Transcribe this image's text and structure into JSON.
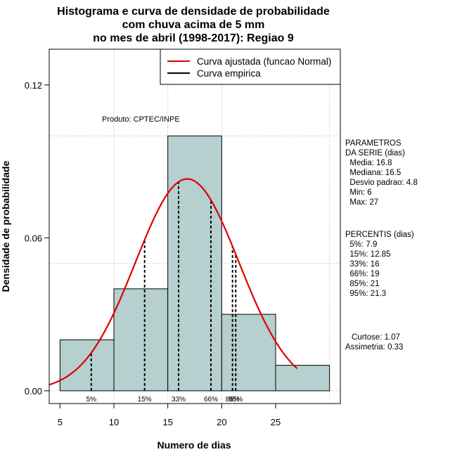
{
  "chart_data": {
    "type": "bar",
    "title_lines": [
      "Histograma e curva de densidade de probabilidade",
      "com chuva acima de 5 mm",
      "no mes de abril (1998-2017): Regiao 9"
    ],
    "xlabel": "Numero de dias",
    "ylabel": "Densidade de probabilidade",
    "xlim": [
      4,
      31
    ],
    "ylim": [
      -0.005,
      0.134
    ],
    "x_ticks": [
      5,
      10,
      15,
      20,
      25
    ],
    "y_ticks": [
      0.0,
      0.06,
      0.12
    ],
    "y_tick_labels": [
      "0.00",
      "0.06",
      "0.12"
    ],
    "grid_x": [
      10,
      15,
      20,
      30
    ],
    "grid_y": [
      0.0,
      0.05,
      0.1
    ],
    "bins": [
      {
        "from": 5,
        "to": 10,
        "density": 0.02
      },
      {
        "from": 10,
        "to": 15,
        "density": 0.04
      },
      {
        "from": 15,
        "to": 20,
        "density": 0.1
      },
      {
        "from": 20,
        "to": 25,
        "density": 0.03
      },
      {
        "from": 25,
        "to": 30,
        "density": 0.01
      }
    ],
    "normal_fit": {
      "mean": 16.8,
      "sd": 4.8,
      "x_from": 4,
      "x_to": 27,
      "color": "#dd0000"
    },
    "bar_color": "#b6cfcf",
    "percentiles": [
      {
        "label": "5%",
        "x": 7.9
      },
      {
        "label": "15%",
        "x": 12.85
      },
      {
        "label": "33%",
        "x": 16
      },
      {
        "label": "66%",
        "x": 19
      },
      {
        "label": "85%",
        "x": 21
      },
      {
        "label": "95%",
        "x": 21.3
      }
    ],
    "product_label": "Produto: CPTEC/INPE",
    "legend": {
      "position": "top-right",
      "items": [
        {
          "label": "Curva ajustada (funcao Normal)",
          "color": "#dd0000"
        },
        {
          "label": "Curva empirica",
          "color": "#000000"
        }
      ]
    },
    "side_panel": {
      "parametros_lines": [
        "PARAMETROS",
        "DA SERIE (dias)",
        "  Media: 16.8",
        "  Mediana: 16.5",
        "  Desvio padrao: 4.8",
        "  Min: 6",
        "  Max: 27"
      ],
      "percentis_lines": [
        "PERCENTIS (dias)",
        "  5%: 7.9",
        "  15%: 12.85",
        "  33%: 16",
        "  66%: 19",
        "  85%: 21",
        "  95%: 21.3"
      ],
      "curtose": "Curtose: 1.07",
      "assimetria": "Assimetria: 0.33"
    }
  }
}
